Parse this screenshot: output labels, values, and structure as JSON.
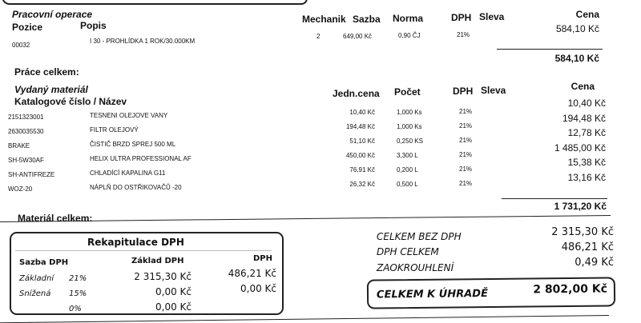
{
  "labor": {
    "section_title": "Pracovní operace",
    "headers": {
      "position": "Pozice",
      "description": "Popis",
      "mechanic": "Mechanik",
      "rate": "Sazba",
      "norm": "Norma",
      "vat": "DPH",
      "discount": "Sleva",
      "price": "Cena"
    },
    "rows": [
      {
        "position": "00032",
        "description": "I 30 - PROHLÍDKA 1 ROK/30.000KM",
        "mechanic": "2",
        "rate": "649,00 Kč",
        "norm": "0,90 ČJ",
        "vat": "21%",
        "price": "584,10 Kč"
      }
    ],
    "subtotal": "584,10 Kč",
    "total_label": "Práce celkem:"
  },
  "material": {
    "section_title": "Vydaný materiál",
    "headers": {
      "code_name": "Katalogové číslo / Název",
      "unit_price": "Jedn.cena",
      "qty": "Počet",
      "vat": "DPH",
      "discount": "Sleva",
      "price": "Cena"
    },
    "rows": [
      {
        "code": "2151323001",
        "name": "TESNENI OLEJOVE VANY",
        "unit_price": "10,40 Kč",
        "qty": "1,000 Ks",
        "vat": "21%",
        "price": "10,40 Kč"
      },
      {
        "code": "2630035530",
        "name": "FILTR OLEJOVÝ",
        "unit_price": "194,48 Kč",
        "qty": "1,000 Ks",
        "vat": "21%",
        "price": "194,48 Kč"
      },
      {
        "code": "BRAKE",
        "name": "ČISTIČ BRZD SPREJ 500 ML",
        "unit_price": "51,10 Kč",
        "qty": "0,250 KS",
        "vat": "21%",
        "price": "12,78 Kč"
      },
      {
        "code": "SH-5W30AF",
        "name": "HELIX ULTRA PROFESSIONAL AF",
        "unit_price": "450,00 Kč",
        "qty": "3,300 L",
        "vat": "21%",
        "price": "1 485,00 Kč"
      },
      {
        "code": "SH-ANTIFREZE",
        "name": "CHLADÍCÍ KAPALINA G11",
        "unit_price": "76,91 Kč",
        "qty": "0,200 L",
        "vat": "21%",
        "price": "15,38 Kč"
      },
      {
        "code": "WOZ-20",
        "name": "NÁPLŇ DO OSTŘIKOVAČŮ -20",
        "unit_price": "26,32 Kč",
        "qty": "0,500 L",
        "vat": "21%",
        "price": "13,16 Kč"
      }
    ],
    "subtotal": "1 731,20 Kč",
    "total_label": "Materiál celkem:"
  },
  "vat_recap": {
    "title": "Rekapitulace DPH",
    "headers": {
      "rate": "Sazba DPH",
      "base": "Základ DPH",
      "vat": "DPH"
    },
    "rows": [
      {
        "name": "Základní",
        "rate": "21%",
        "base": "2 315,30 Kč",
        "vat": "486,21 Kč"
      },
      {
        "name": "Snížená",
        "rate": "15%",
        "base": "0,00 Kč",
        "vat": "0,00 Kč"
      },
      {
        "name": "",
        "rate": "0%",
        "base": "0,00 Kč",
        "vat": ""
      }
    ]
  },
  "totals": {
    "without_vat_label": "CELKEM BEZ DPH",
    "without_vat": "2 315,30 Kč",
    "vat_label": "DPH CELKEM",
    "vat": "486,21 Kč",
    "rounding_label": "ZAOKROUHLENÍ",
    "rounding": "0,49 Kč",
    "due_label": "CELKEM K ÚHRADĚ",
    "due": "2 802,00 Kč"
  }
}
